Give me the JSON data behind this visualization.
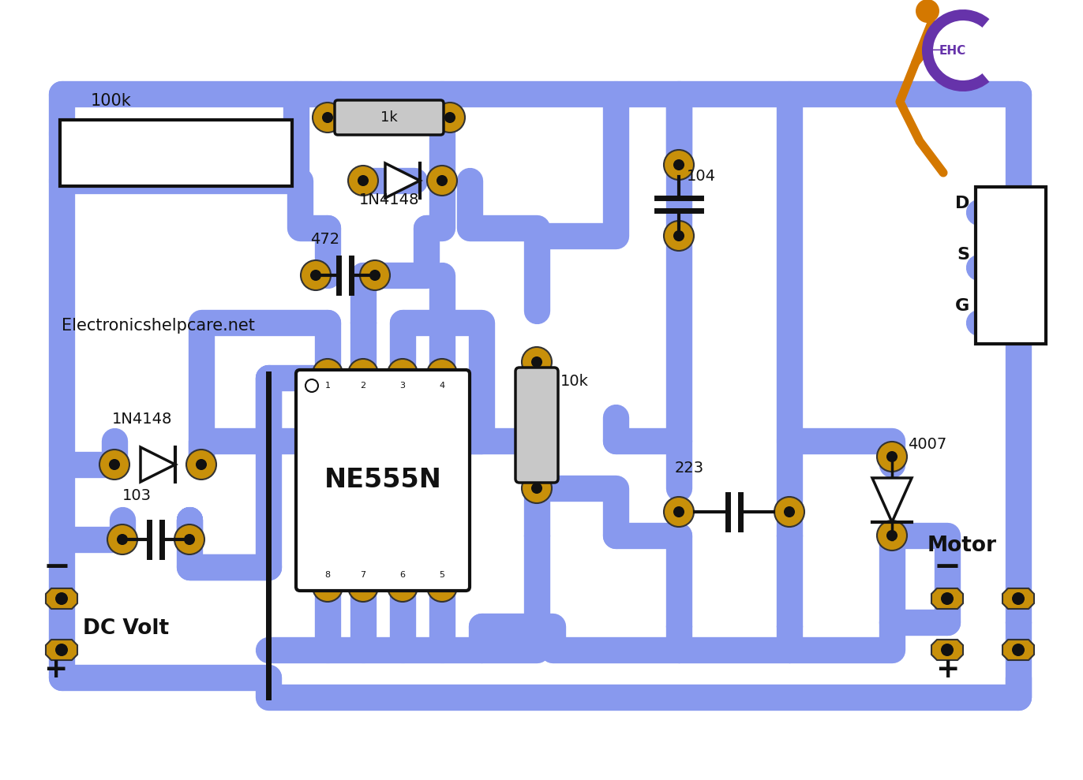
{
  "bg_color": "#ffffff",
  "pcb_track_color": "#8899ee",
  "pad_color": "#C8900A",
  "pad_edge": "#333333",
  "black": "#111111",
  "logo_orange": "#D47800",
  "logo_purple": "#6633AA",
  "ic_label": "NE555N",
  "dc_volt_label": "DC Volt",
  "motor_label": "Motor",
  "website": "Electronicshelpcare.net",
  "comp_labels": [
    "103",
    "1N4148",
    "472",
    "1N4148",
    "10k",
    "1k",
    "100k",
    "223",
    "4007",
    "104"
  ],
  "gsd_labels": [
    "G",
    "S",
    "D"
  ],
  "plus_sign": "+",
  "minus_sign": "−"
}
